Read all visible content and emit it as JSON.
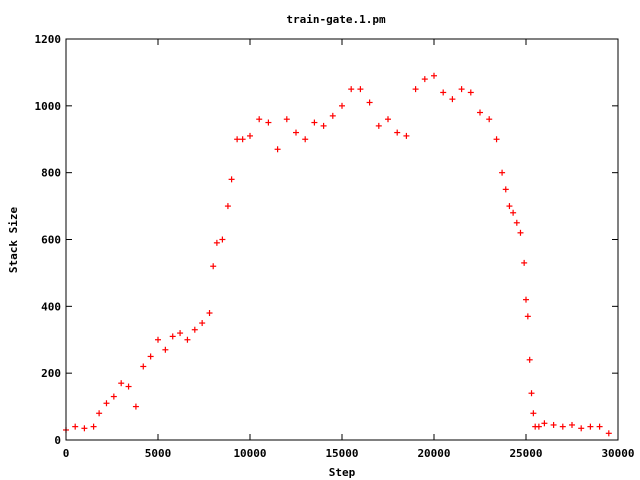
{
  "chart_data": {
    "type": "scatter",
    "title": "train-gate.1.pm",
    "xlabel": "Step",
    "ylabel": "Stack Size",
    "xlim": [
      0,
      30000
    ],
    "ylim": [
      0,
      1200
    ],
    "xticks": [
      0,
      5000,
      10000,
      15000,
      20000,
      25000,
      30000
    ],
    "yticks": [
      0,
      200,
      400,
      600,
      800,
      1000,
      1200
    ],
    "grid": false,
    "legend": "none",
    "marker": "+",
    "series_color": "#ff0000",
    "series": [
      {
        "x": [
          0,
          500,
          1000,
          1500,
          1800,
          2200,
          2600,
          3000,
          3400,
          3800,
          4200,
          4600,
          5000,
          5400,
          5800,
          6200,
          6600,
          7000,
          7400,
          7800,
          8000,
          8200,
          8500,
          8800,
          9000,
          9300,
          9600,
          10000,
          10500,
          11000,
          11500,
          12000,
          12500,
          13000,
          13500,
          14000,
          14500,
          15000,
          15500,
          16000,
          16500,
          17000,
          17500,
          18000,
          18500,
          19000,
          19500,
          20000,
          20500,
          21000,
          21500,
          22000,
          22500,
          23000,
          23400,
          23700,
          23900,
          24100,
          24300,
          24500,
          24700,
          24900,
          25000,
          25100,
          25200,
          25300,
          25400,
          25500,
          25700,
          26000,
          26500,
          27000,
          27500,
          28000,
          28500,
          29000,
          29500
        ],
        "y": [
          30,
          40,
          35,
          40,
          80,
          110,
          130,
          170,
          160,
          100,
          220,
          250,
          300,
          270,
          310,
          320,
          300,
          330,
          350,
          380,
          520,
          590,
          600,
          700,
          780,
          900,
          900,
          910,
          960,
          950,
          870,
          960,
          920,
          900,
          950,
          940,
          970,
          1000,
          1050,
          1050,
          1010,
          940,
          960,
          920,
          910,
          1050,
          1080,
          1090,
          1040,
          1020,
          1050,
          1040,
          980,
          960,
          900,
          800,
          750,
          700,
          680,
          650,
          620,
          530,
          420,
          370,
          240,
          140,
          80,
          40,
          40,
          50,
          45,
          40,
          45,
          35,
          40,
          40,
          20
        ]
      }
    ]
  }
}
